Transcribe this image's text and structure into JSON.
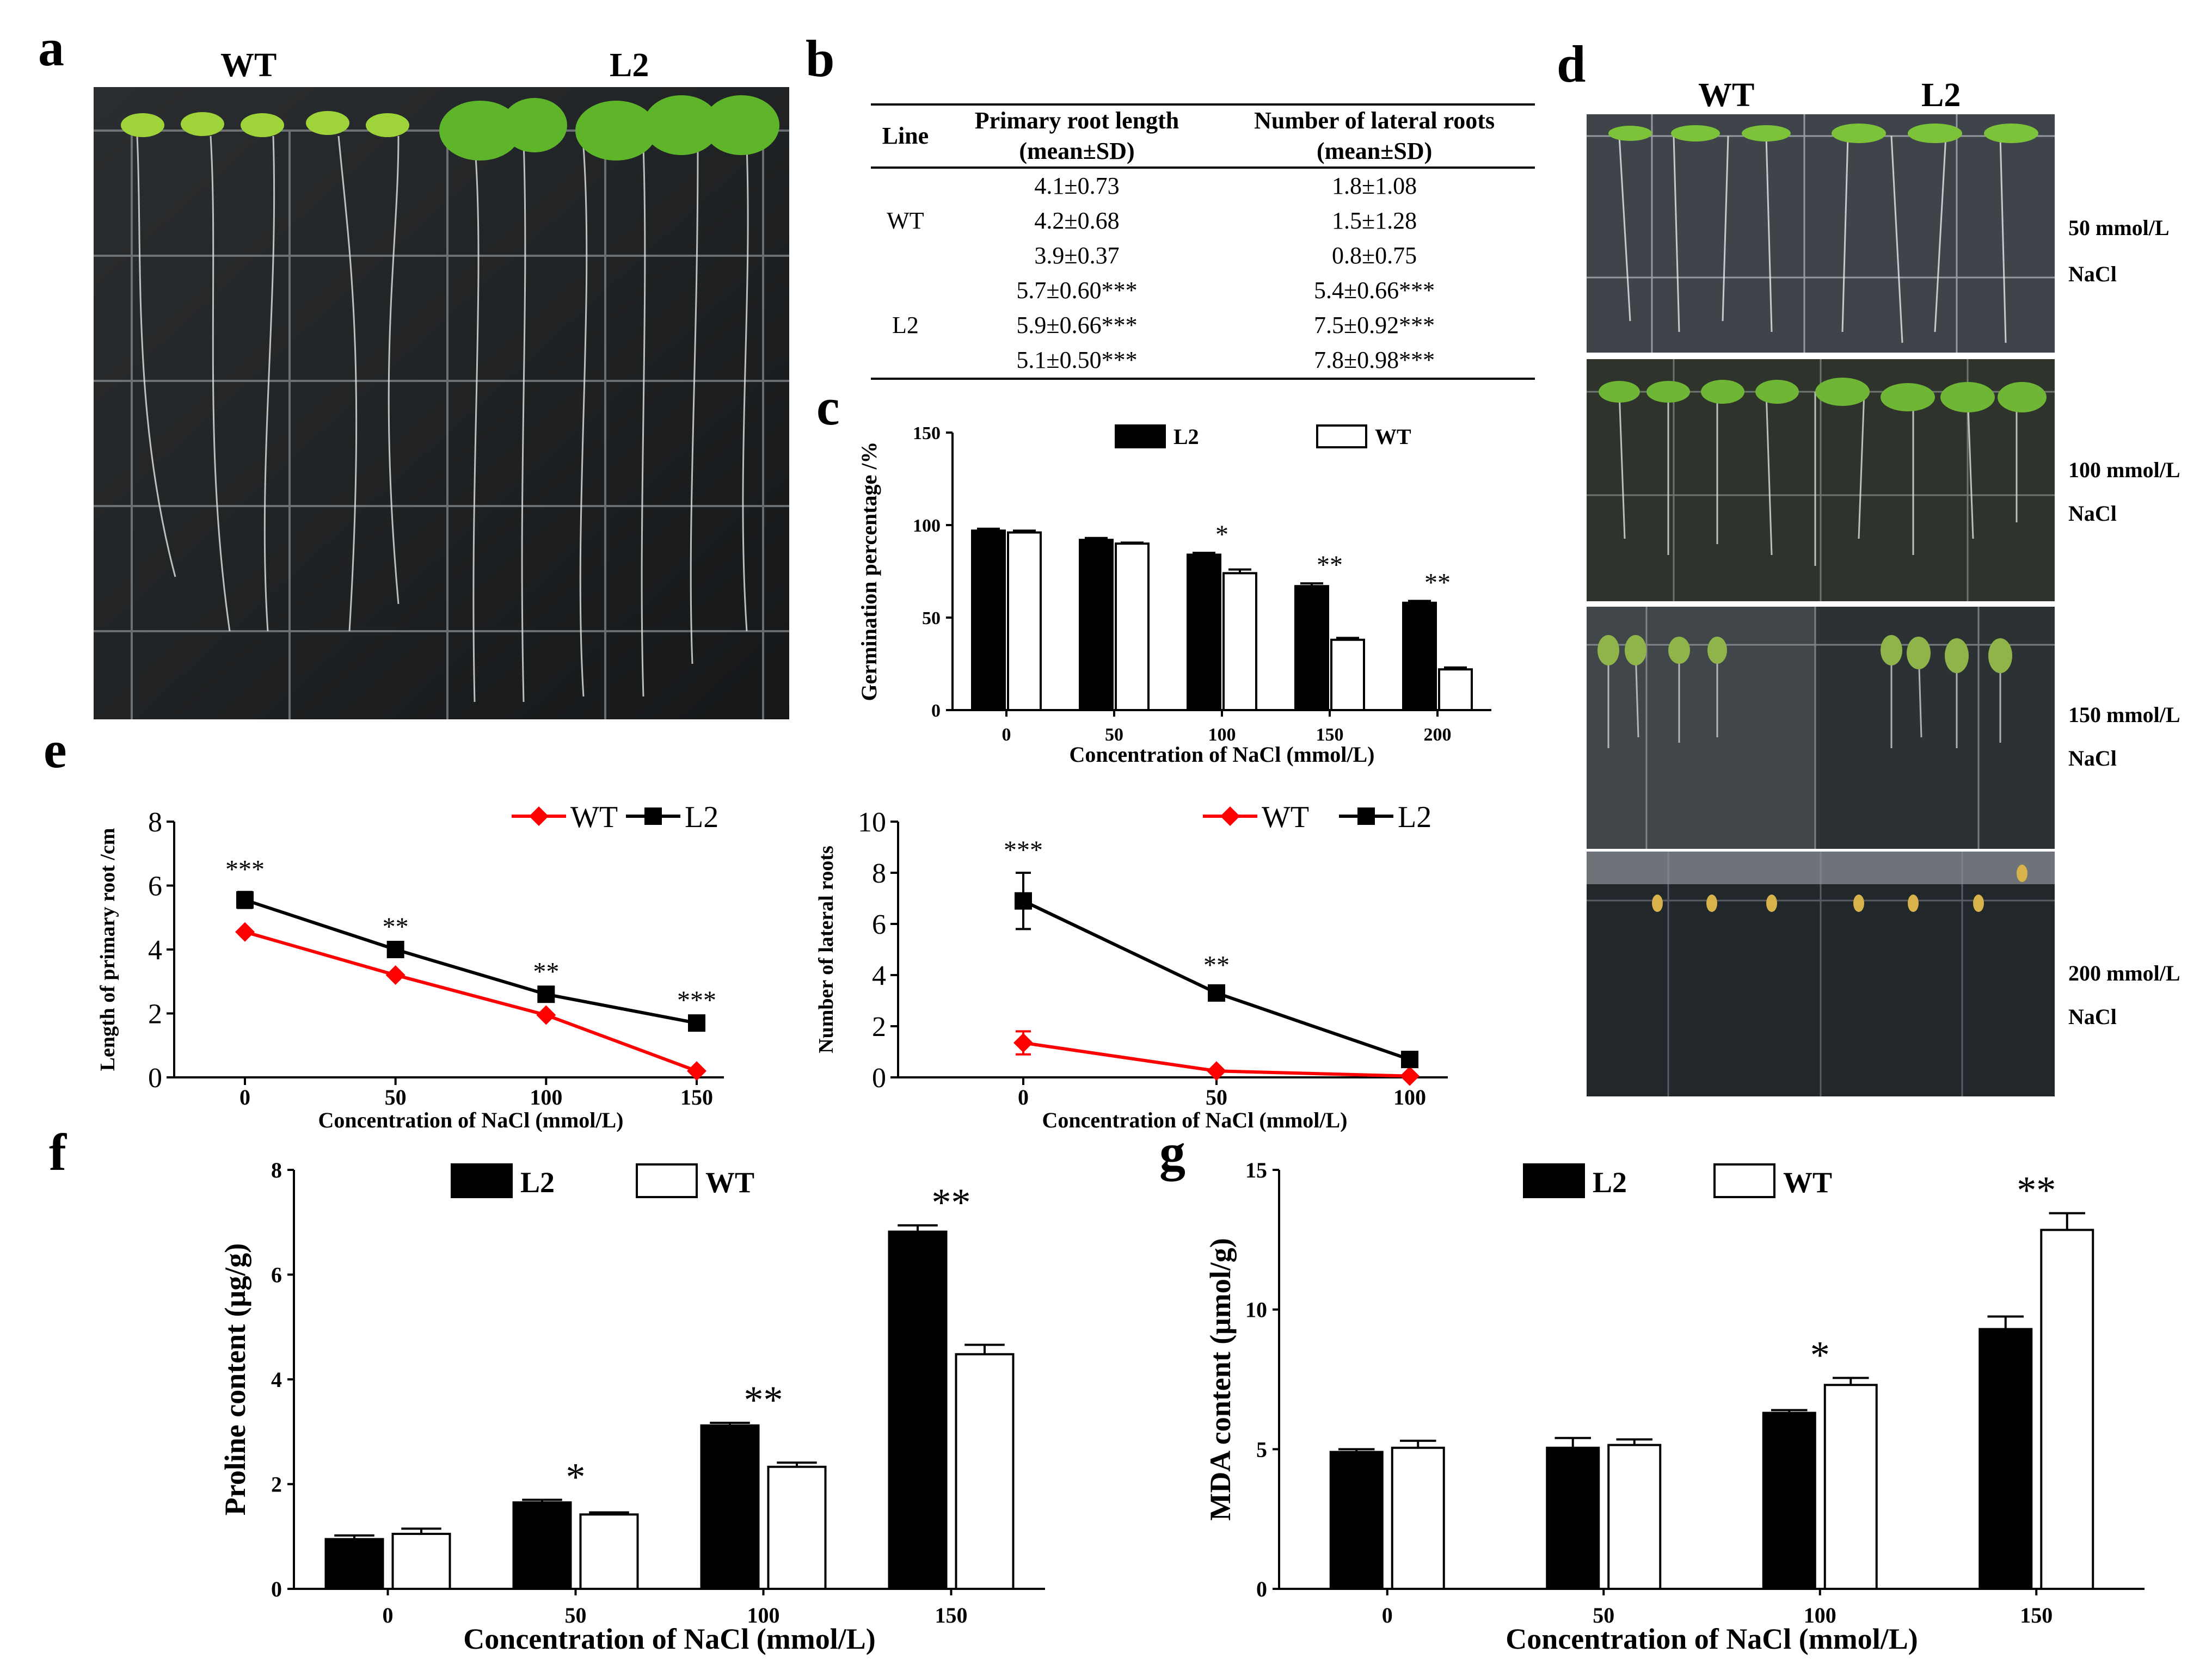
{
  "panels": {
    "a": "a",
    "b": "b",
    "c": "c",
    "d": "d",
    "e": "e",
    "f": "f",
    "g": "g"
  },
  "panel_a": {
    "labels": [
      "WT",
      "L2"
    ]
  },
  "panel_b": {
    "headers": {
      "line": "Line",
      "primary": [
        "Primary root length",
        "(mean±SD)"
      ],
      "lateral": [
        "Number of lateral roots",
        "(mean±SD)"
      ]
    },
    "rows": [
      {
        "line": "",
        "primary": "4.1±0.73",
        "lateral": "1.8±1.08"
      },
      {
        "line": "WT",
        "primary": "4.2±0.68",
        "lateral": "1.5±1.28"
      },
      {
        "line": "",
        "primary": "3.9±0.37",
        "lateral": "0.8±0.75"
      },
      {
        "line": "",
        "primary": "5.7±0.60***",
        "lateral": "5.4±0.66***"
      },
      {
        "line": "L2",
        "primary": "5.9±0.66***",
        "lateral": "7.5±0.92***"
      },
      {
        "line": "",
        "primary": "5.1±0.50***",
        "lateral": "7.8±0.98***"
      }
    ]
  },
  "panel_d": {
    "labels": [
      "WT",
      "L2"
    ],
    "conditions": [
      {
        "conc": "50 mmol/L",
        "salt": "NaCl"
      },
      {
        "conc": "100 mmol/L",
        "salt": "NaCl"
      },
      {
        "conc": "150 mmol/L",
        "salt": "NaCl"
      },
      {
        "conc": "200 mmol/L",
        "salt": "NaCl"
      }
    ]
  },
  "chart_data": [
    {
      "id": "c",
      "type": "bar",
      "categories": [
        "0",
        "50",
        "100",
        "150",
        "200"
      ],
      "series": [
        {
          "name": "L2",
          "values": [
            97,
            92,
            84,
            67,
            58
          ],
          "errors": [
            1,
            1,
            1,
            1.5,
            1
          ],
          "fill": "#000000"
        },
        {
          "name": "WT",
          "values": [
            96,
            90,
            74,
            38,
            22
          ],
          "errors": [
            1,
            0.5,
            2,
            1,
            1
          ],
          "fill": "#ffffff"
        }
      ],
      "significance": [
        "",
        "",
        "*",
        "**",
        "**"
      ],
      "xlabel": "Concentration of NaCl (mmol/L)",
      "ylabel": "Germination percentage /%",
      "ylim": [
        0,
        150
      ],
      "yticks": [
        0,
        50,
        100,
        150
      ]
    },
    {
      "id": "e1",
      "type": "line",
      "x": [
        "0",
        "50",
        "100",
        "150"
      ],
      "series": [
        {
          "name": "WT",
          "values": [
            4.55,
            3.2,
            1.95,
            0.2
          ],
          "errors": [
            0,
            0,
            0,
            0
          ],
          "color": "#ff0000",
          "marker": "diamond"
        },
        {
          "name": "L2",
          "values": [
            5.55,
            4.0,
            2.6,
            1.7
          ],
          "errors": [
            0.25,
            0,
            0,
            0
          ],
          "color": "#000000",
          "marker": "square"
        }
      ],
      "significance": [
        "***",
        "**",
        "**",
        "***"
      ],
      "xlabel": "Concentration of NaCl (mmol/L)",
      "ylabel": "Length of primary root /cm",
      "ylim": [
        0,
        8
      ],
      "yticks": [
        0,
        2,
        4,
        6,
        8
      ]
    },
    {
      "id": "e2",
      "type": "line",
      "x": [
        "0",
        "50",
        "100"
      ],
      "series": [
        {
          "name": "WT",
          "values": [
            1.35,
            0.25,
            0.05
          ],
          "errors": [
            0.45,
            0,
            0
          ],
          "color": "#ff0000",
          "marker": "diamond"
        },
        {
          "name": "L2",
          "values": [
            6.9,
            3.3,
            0.7
          ],
          "errors": [
            1.1,
            0.2,
            0.1
          ],
          "color": "#000000",
          "marker": "square"
        }
      ],
      "significance": [
        "***",
        "**",
        ""
      ],
      "xlabel": "Concentration of NaCl (mmol/L)",
      "ylabel": "Number of lateral roots",
      "ylim": [
        0,
        10
      ],
      "yticks": [
        0,
        2,
        4,
        6,
        8,
        10
      ]
    },
    {
      "id": "f",
      "type": "bar",
      "categories": [
        "0",
        "50",
        "100",
        "150"
      ],
      "series": [
        {
          "name": "L2",
          "values": [
            0.95,
            1.65,
            3.12,
            6.82
          ],
          "errors": [
            0.07,
            0.05,
            0.05,
            0.12
          ],
          "fill": "#000000"
        },
        {
          "name": "WT",
          "values": [
            1.05,
            1.42,
            2.33,
            4.48
          ],
          "errors": [
            0.1,
            0.04,
            0.08,
            0.18
          ],
          "fill": "#ffffff"
        }
      ],
      "significance": [
        "",
        "*",
        "**",
        "**"
      ],
      "xlabel": "Concentration of NaCl (mmol/L)",
      "ylabel": "Proline content (μg/g)",
      "ylim": [
        0,
        8
      ],
      "yticks": [
        0,
        2,
        4,
        6,
        8
      ]
    },
    {
      "id": "g",
      "type": "bar",
      "categories": [
        "0",
        "50",
        "100",
        "150"
      ],
      "series": [
        {
          "name": "L2",
          "values": [
            4.9,
            5.05,
            6.3,
            9.3
          ],
          "errors": [
            0.1,
            0.35,
            0.1,
            0.45
          ],
          "fill": "#000000"
        },
        {
          "name": "WT",
          "values": [
            5.05,
            5.15,
            7.3,
            12.85
          ],
          "errors": [
            0.25,
            0.2,
            0.25,
            0.6
          ],
          "fill": "#ffffff"
        }
      ],
      "significance": [
        "",
        "",
        "*",
        "**"
      ],
      "xlabel": "Concentration of NaCl (mmol/L)",
      "ylabel": "MDA content (μmol/g)",
      "ylim": [
        0,
        15
      ],
      "yticks": [
        0,
        5,
        10,
        15
      ]
    }
  ]
}
